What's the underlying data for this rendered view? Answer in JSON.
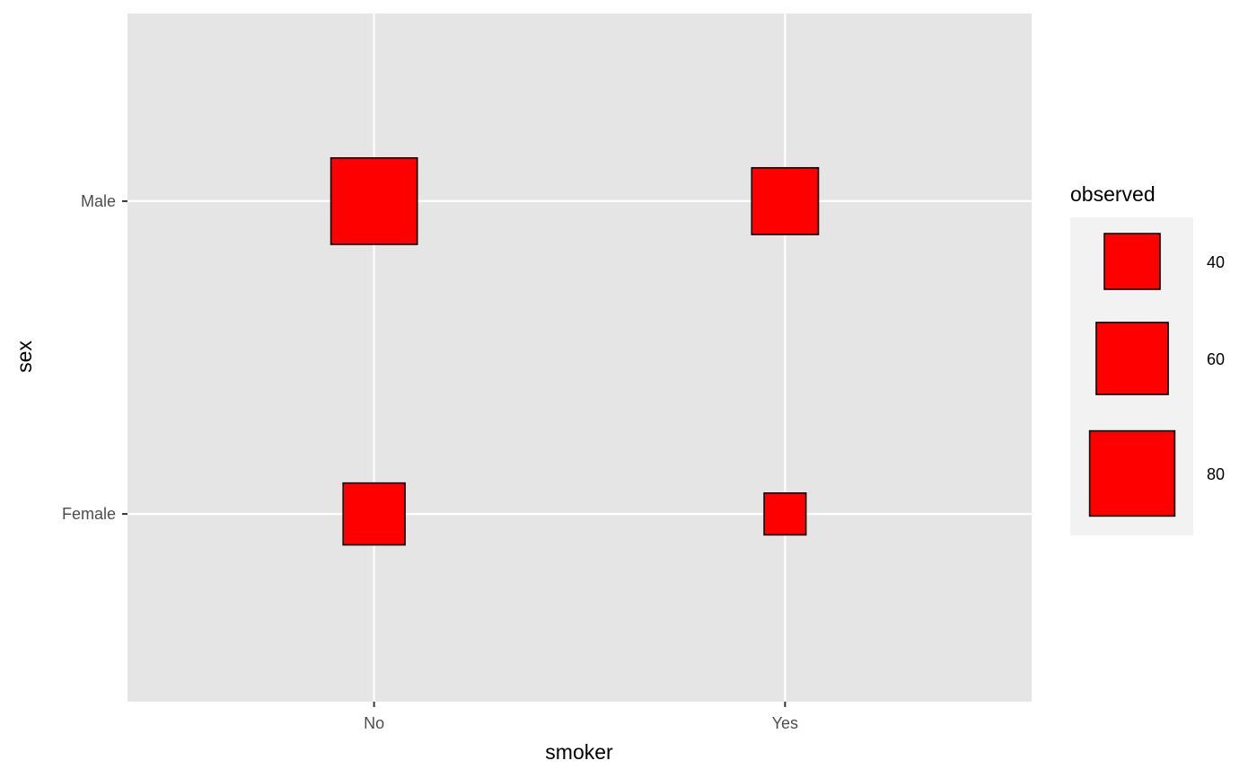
{
  "chart_data": {
    "type": "scatter",
    "marker": "square",
    "xlabel": "smoker",
    "ylabel": "sex",
    "x_categories": [
      "No",
      "Yes"
    ],
    "y_categories": [
      "Female",
      "Male"
    ],
    "size_variable": "observed",
    "points": [
      {
        "x": "No",
        "y": "Male",
        "observed": 82
      },
      {
        "x": "Yes",
        "y": "Male",
        "observed": 53
      },
      {
        "x": "No",
        "y": "Female",
        "observed": 47
      },
      {
        "x": "Yes",
        "y": "Female",
        "observed": 27
      }
    ],
    "legend": {
      "title": "observed",
      "placement": "right",
      "entries": [
        {
          "label": "40",
          "value": 40
        },
        {
          "label": "60",
          "value": 60
        },
        {
          "label": "80",
          "value": 80
        }
      ]
    },
    "grid": true,
    "colors": {
      "fill": "#ff0000",
      "stroke": "#000000",
      "panel": "#e5e5e5",
      "grid": "#ffffff",
      "legend_key_bg": "#f2f2f2"
    }
  }
}
